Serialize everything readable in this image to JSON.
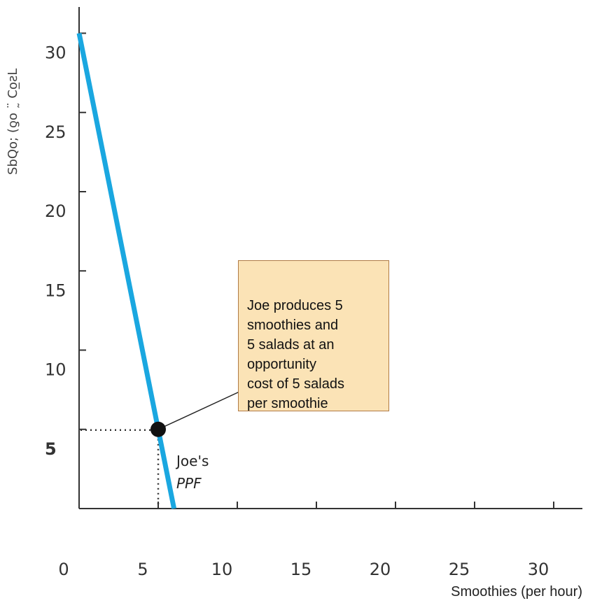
{
  "chart_data": {
    "type": "line",
    "title": "",
    "xlabel": "Smoothies (per hour)",
    "ylabel": "",
    "xlim": [
      0,
      32
    ],
    "ylim": [
      0,
      30.5
    ],
    "x_ticks": [
      0,
      5,
      10,
      15,
      20,
      25,
      30
    ],
    "y_ticks": [
      5,
      10,
      15,
      20,
      25,
      30
    ],
    "series": [
      {
        "name": "Joe's PPF",
        "label_line1": "Joe's",
        "label_line2": "PPF",
        "color": "#1aa7e0",
        "points": [
          [
            0,
            30
          ],
          [
            6,
            0
          ]
        ]
      }
    ],
    "highlight_point": {
      "x": 5,
      "y": 5
    },
    "annotation": {
      "text_lines": [
        "Joe produces 5",
        "smoothies and",
        "5 salads at an",
        "opportunity",
        "cost of 5 salads",
        "per smoothie"
      ],
      "fill": "#fbe3b6",
      "border": "#b07b45"
    },
    "grid": false
  }
}
